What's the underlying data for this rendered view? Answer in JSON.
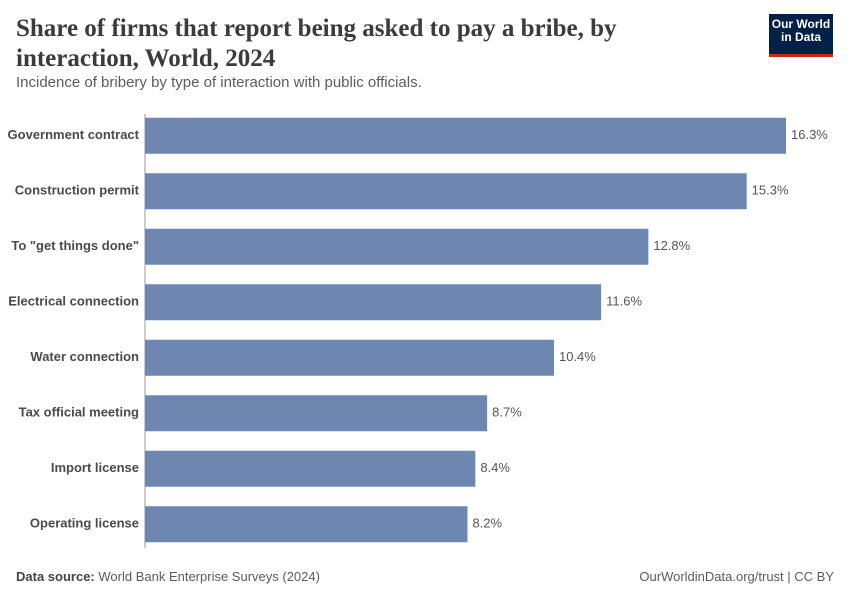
{
  "chart_data": {
    "type": "bar",
    "orientation": "horizontal",
    "title": "Share of firms that report being asked to pay a bribe, by interaction, World, 2024",
    "subtitle": "Incidence of bribery by type of interaction with public officials.",
    "categories": [
      "Government contract",
      "Construction permit",
      "To \"get things done\"",
      "Electrical connection",
      "Water connection",
      "Tax official meeting",
      "Import license",
      "Operating license"
    ],
    "values": [
      16.3,
      15.3,
      12.8,
      11.6,
      10.4,
      8.7,
      8.4,
      8.2
    ],
    "value_labels": [
      "16.3%",
      "15.3%",
      "12.8%",
      "11.6%",
      "10.4%",
      "8.7%",
      "8.4%",
      "8.2%"
    ],
    "color": "#6e87b0",
    "source_label": "Data source:",
    "source": "World Bank Enterprise Surveys (2024)",
    "license": "OurWorldinData.org/trust | CC BY",
    "logo": [
      "Our World",
      "in Data"
    ]
  }
}
